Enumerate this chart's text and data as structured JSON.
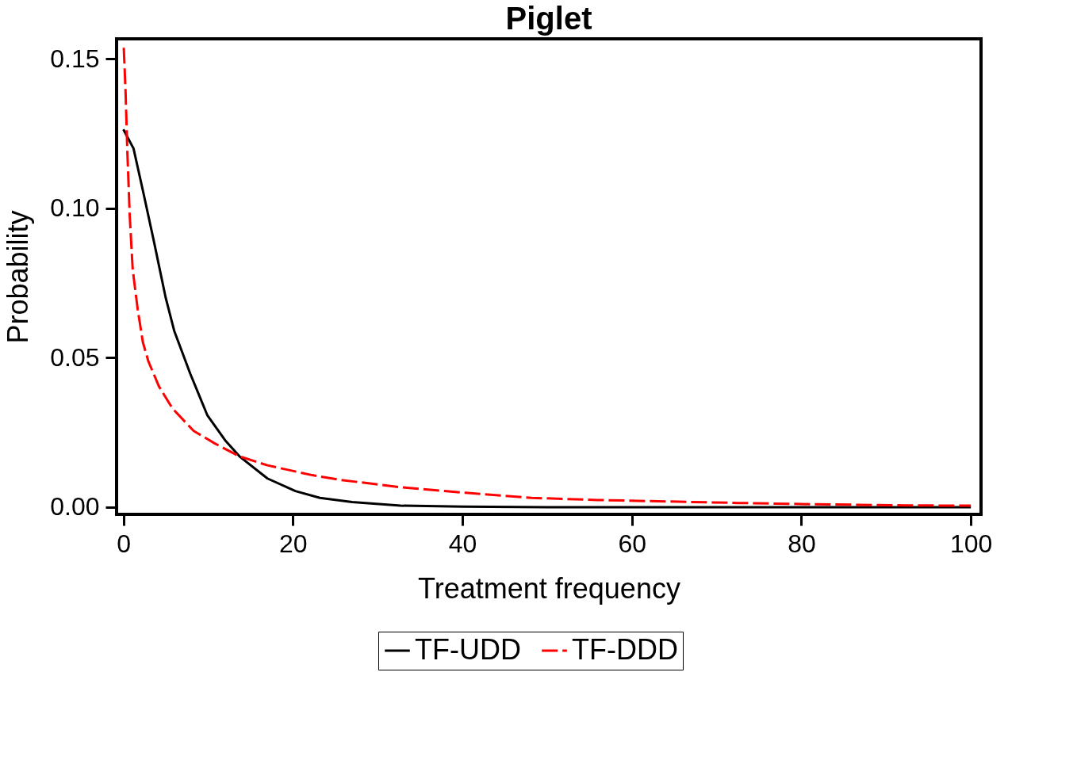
{
  "chart_data": {
    "type": "line",
    "title": "Piglet",
    "xlabel": "Treatment frequency",
    "ylabel": "Probability",
    "xlim": [
      -0.8,
      101.2
    ],
    "ylim": [
      -0.0024,
      0.1567
    ],
    "xticks": [
      0,
      20,
      40,
      60,
      80,
      100
    ],
    "yticks": [
      {
        "value": 0,
        "label": "0.00"
      },
      {
        "value": 0.05,
        "label": "0.05"
      },
      {
        "value": 0.1,
        "label": "0.10"
      },
      {
        "value": 0.15,
        "label": "0.15"
      }
    ],
    "grid": false,
    "legend": "bottom",
    "marker": "none",
    "series": [
      {
        "name": "TF-UDD",
        "color": "#000000",
        "line_style": "solid",
        "x": [
          0,
          1.2,
          2.3,
          3.6,
          5.0,
          6.0,
          7.9,
          9.9,
          12.0,
          13.7,
          17.0,
          20.3,
          23.2,
          27,
          32.7,
          40,
          50,
          60,
          70,
          80,
          90,
          100
        ],
        "values": [
          0.1264,
          0.12,
          0.106,
          0.089,
          0.07,
          0.059,
          0.0446,
          0.0308,
          0.0224,
          0.017,
          0.0096,
          0.0054,
          0.0031,
          0.0017,
          0.0005,
          0.0002,
          0,
          0,
          0,
          0,
          0,
          0
        ]
      },
      {
        "name": "TF-DDD",
        "color": "#ff0000",
        "line_style": "dashed",
        "x": [
          0.05,
          0.26,
          0.47,
          0.75,
          1.1,
          1.7,
          2.3,
          2.95,
          4.2,
          5.8,
          8.3,
          10.8,
          13.7,
          17,
          22.3,
          25.4,
          32.6,
          40.4,
          48.2,
          56,
          64.3,
          72.6,
          81,
          92.1,
          100
        ],
        "values": [
          0.1537,
          0.139,
          0.119,
          0.0976,
          0.0796,
          0.066,
          0.0552,
          0.0488,
          0.0404,
          0.033,
          0.0255,
          0.0213,
          0.017,
          0.014,
          0.0107,
          0.0092,
          0.0067,
          0.0048,
          0.0031,
          0.0024,
          0.0019,
          0.0014,
          0.001,
          0.0006,
          0.0005
        ]
      }
    ]
  }
}
